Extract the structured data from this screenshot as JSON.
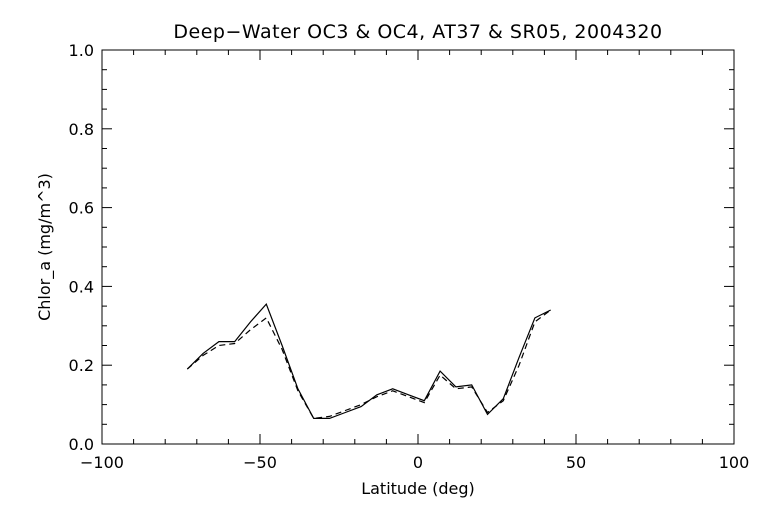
{
  "chart_data": {
    "type": "line",
    "title": "Deep−Water OC3 & OC4, AT37 & SR05, 2004320",
    "xlabel": "Latitude (deg)",
    "ylabel": "Chlor_a (mg/m^3)",
    "xlim": [
      -100,
      100
    ],
    "ylim": [
      0.0,
      1.0
    ],
    "xticks": [
      -100,
      -50,
      0,
      50,
      100
    ],
    "xtick_labels": [
      "−100",
      "−50",
      "0",
      "50",
      "100"
    ],
    "yticks": [
      0.0,
      0.2,
      0.4,
      0.6,
      0.8,
      1.0
    ],
    "ytick_labels": [
      "0.0",
      "0.2",
      "0.4",
      "0.6",
      "0.8",
      "1.0"
    ],
    "grid": false,
    "series": [
      {
        "style": "solid",
        "x": [
          -73,
          -68,
          -63,
          -58,
          -53,
          -48,
          -43,
          -38,
          -33,
          -28,
          -23,
          -18,
          -13,
          -8,
          -3,
          2,
          7,
          12,
          17,
          22,
          27,
          32,
          37,
          42
        ],
        "y": [
          0.19,
          0.23,
          0.26,
          0.26,
          0.31,
          0.355,
          0.25,
          0.14,
          0.065,
          0.065,
          0.08,
          0.095,
          0.125,
          0.14,
          0.125,
          0.11,
          0.185,
          0.145,
          0.15,
          0.075,
          0.115,
          0.22,
          0.32,
          0.34
        ]
      },
      {
        "style": "dashed",
        "x": [
          -73,
          -68,
          -63,
          -58,
          -53,
          -48,
          -43,
          -38,
          -33,
          -28,
          -23,
          -18,
          -13,
          -8,
          -3,
          2,
          7,
          12,
          17,
          22,
          27,
          32,
          37,
          42
        ],
        "y": [
          0.19,
          0.225,
          0.25,
          0.255,
          0.29,
          0.32,
          0.24,
          0.135,
          0.065,
          0.07,
          0.085,
          0.1,
          0.12,
          0.135,
          0.12,
          0.105,
          0.175,
          0.14,
          0.145,
          0.08,
          0.11,
          0.2,
          0.31,
          0.34
        ]
      }
    ]
  }
}
